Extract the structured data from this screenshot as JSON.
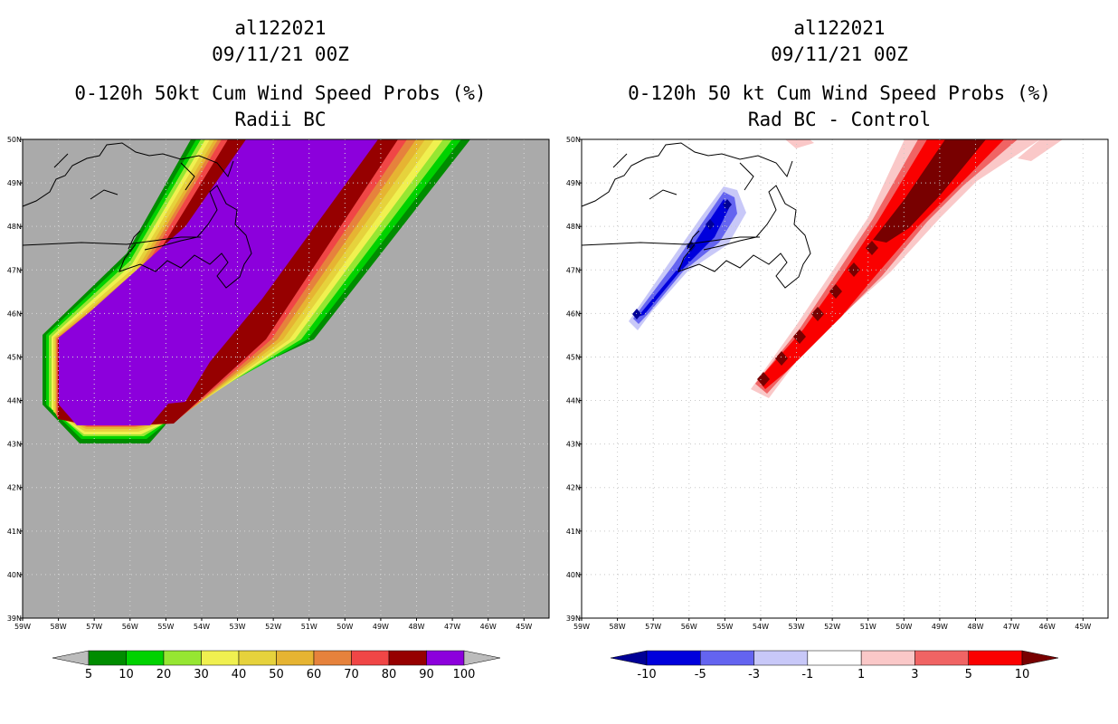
{
  "left_panel": {
    "storm_id": "al122021",
    "date": "09/11/21 00Z",
    "title": "0-120h 50kt Cum Wind Speed Probs (%)",
    "subtitle": "Radii BC"
  },
  "right_panel": {
    "storm_id": "al122021",
    "date": "09/11/21 00Z",
    "title": "0-120h 50 kt Cum Wind Speed Probs (%)",
    "subtitle": "Rad BC - Control"
  },
  "axes": {
    "lat_labels": [
      "39N",
      "40N",
      "41N",
      "42N",
      "43N",
      "44N",
      "45N",
      "46N",
      "47N",
      "48N",
      "49N",
      "50N"
    ],
    "lon_labels": [
      "59W",
      "58W",
      "57W",
      "56W",
      "55W",
      "54W",
      "53W",
      "52W",
      "51W",
      "50W",
      "49W",
      "48W",
      "47W",
      "46W",
      "45W"
    ]
  },
  "left_colorbar": {
    "labels": [
      "5",
      "10",
      "20",
      "30",
      "40",
      "50",
      "60",
      "70",
      "80",
      "90",
      "100"
    ],
    "colors": [
      "#008c00",
      "#00d200",
      "#96e632",
      "#f0f050",
      "#e6d23c",
      "#e6b432",
      "#e6823c",
      "#f04646",
      "#960000",
      "#8c00dc"
    ],
    "below_color": "#bcbcbc",
    "above_color": "#bcbcbc"
  },
  "right_colorbar": {
    "labels": [
      "-10",
      "-5",
      "-3",
      "-1",
      "1",
      "3",
      "5",
      "10"
    ],
    "colors": [
      "#0000dc",
      "#6464f0",
      "#c8c8f8",
      "#ffffff",
      "#fac8c8",
      "#f06464",
      "#fa0000"
    ],
    "below_color": "#000096",
    "above_color": "#780000"
  }
}
